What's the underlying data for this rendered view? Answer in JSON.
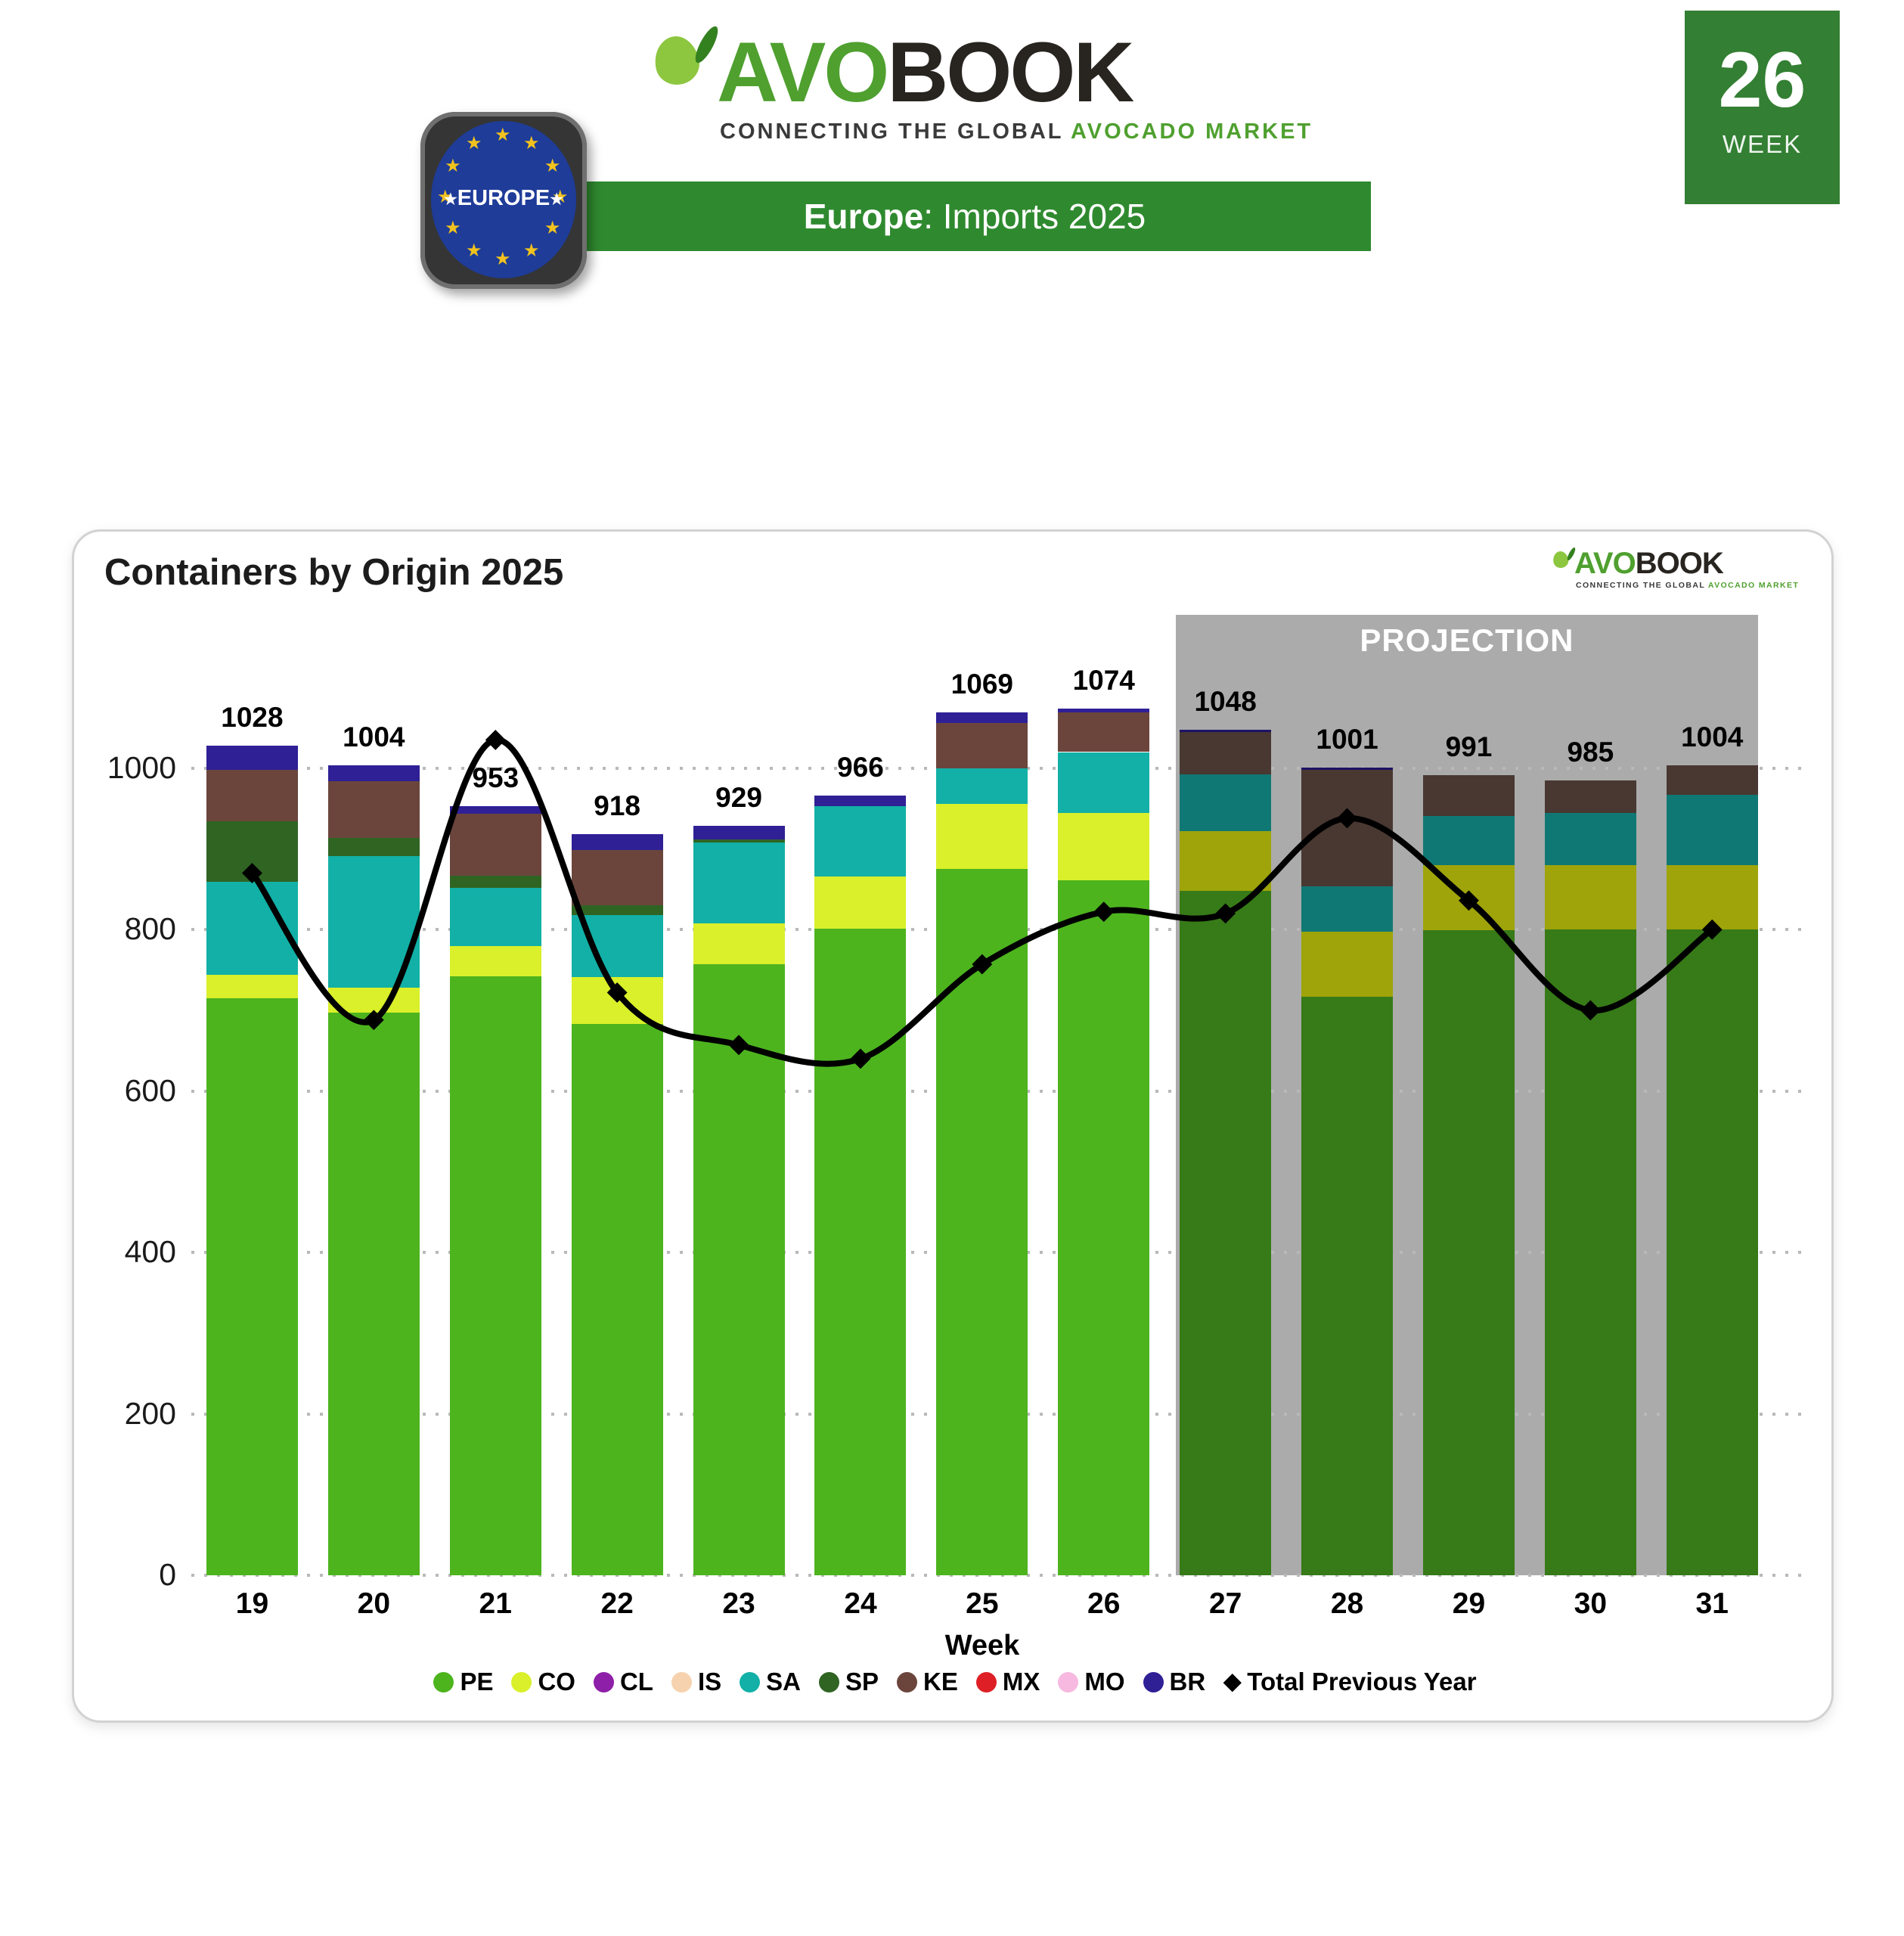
{
  "header": {
    "logo": {
      "avo": "AVO",
      "book": "BOOK",
      "tagline_dark": "CONNECTING THE GLOBAL",
      "tagline_green": "AVOCADO MARKET"
    },
    "region_badge": "EUROPE",
    "banner": {
      "region": "Europe",
      "rest": ": Imports 2025",
      "background": "#2F8A2F"
    },
    "week_badge": {
      "number": "26",
      "label": "WEEK",
      "background": "#337F33"
    }
  },
  "chart_data": {
    "type": "stacked-bar+line",
    "title": "Containers by Origin 2025",
    "projection_label": "PROJECTION",
    "projection_band_color": "#ABABAB",
    "xlabel": "Week",
    "y_ticks": [
      0,
      200,
      400,
      600,
      800,
      1000
    ],
    "ymax": 1190,
    "grid": "dotted-horizontal",
    "legend_position": "bottom",
    "categories": [
      "19",
      "20",
      "21",
      "22",
      "23",
      "24",
      "25",
      "26",
      "27",
      "28",
      "29",
      "30",
      "31"
    ],
    "totals": [
      1028,
      1004,
      953,
      918,
      929,
      966,
      1069,
      1074,
      1048,
      1001,
      991,
      985,
      1004
    ],
    "projection_start_index": 8,
    "series": [
      {
        "id": "PE",
        "label": "PE",
        "color": "#4DB41E",
        "color_projection": "#377A18",
        "values": [
          715,
          697,
          742,
          683,
          757,
          801,
          875,
          861,
          848,
          717,
          799,
          800,
          800
        ]
      },
      {
        "id": "CO",
        "label": "CO",
        "color": "#D9F02A",
        "color_projection": "#9EA409",
        "values": [
          29,
          31,
          38,
          58,
          51,
          65,
          81,
          84,
          74,
          80,
          81,
          80,
          80
        ]
      },
      {
        "id": "CL",
        "label": "CL",
        "color": "#8E1FA8",
        "color_projection": "#6E1880",
        "values": [
          0,
          0,
          0,
          0,
          0,
          0,
          0,
          0,
          0,
          0,
          0,
          0,
          0
        ]
      },
      {
        "id": "IS",
        "label": "IS",
        "color": "#F6D2AE",
        "color_projection": "#C9A87F",
        "values": [
          0,
          0,
          0,
          0,
          0,
          0,
          0,
          0,
          0,
          0,
          0,
          0,
          0
        ]
      },
      {
        "id": "SA",
        "label": "SA",
        "color": "#12B0A6",
        "color_projection": "#107874",
        "values": [
          115,
          163,
          72,
          77,
          100,
          87,
          44,
          75,
          70,
          57,
          61,
          65,
          87
        ]
      },
      {
        "id": "SP",
        "label": "SP",
        "color": "#2F6423",
        "color_projection": "#24501B",
        "values": [
          75,
          23,
          15,
          12,
          4,
          0,
          0,
          0,
          0,
          0,
          0,
          0,
          0
        ]
      },
      {
        "id": "KE",
        "label": "KE",
        "color": "#6B453C",
        "color_projection": "#483831",
        "values": [
          64,
          70,
          77,
          69,
          0,
          0,
          56,
          49,
          53,
          144,
          50,
          40,
          37
        ]
      },
      {
        "id": "MX",
        "label": "MX",
        "color": "#DE1F26",
        "color_projection": "#A81418",
        "values": [
          0,
          0,
          0,
          0,
          0,
          0,
          0,
          0,
          0,
          0,
          0,
          0,
          0
        ]
      },
      {
        "id": "MO",
        "label": "MO",
        "color": "#F7B9E0",
        "color_projection": "#C68FB0",
        "values": [
          0,
          0,
          0,
          0,
          0,
          0,
          0,
          0,
          0,
          0,
          0,
          0,
          0
        ]
      },
      {
        "id": "BR",
        "label": "BR",
        "color": "#2F2096",
        "color_projection": "#1D1364",
        "values": [
          30,
          20,
          9,
          19,
          17,
          13,
          13,
          5,
          3,
          3,
          0,
          0,
          0
        ]
      }
    ],
    "line_series": {
      "label": "Total Previous Year",
      "color": "#000000",
      "values": [
        870,
        688,
        1035,
        722,
        657,
        640,
        757,
        822,
        820,
        938,
        836,
        700,
        800
      ]
    },
    "star_color": "#F2C21E"
  }
}
